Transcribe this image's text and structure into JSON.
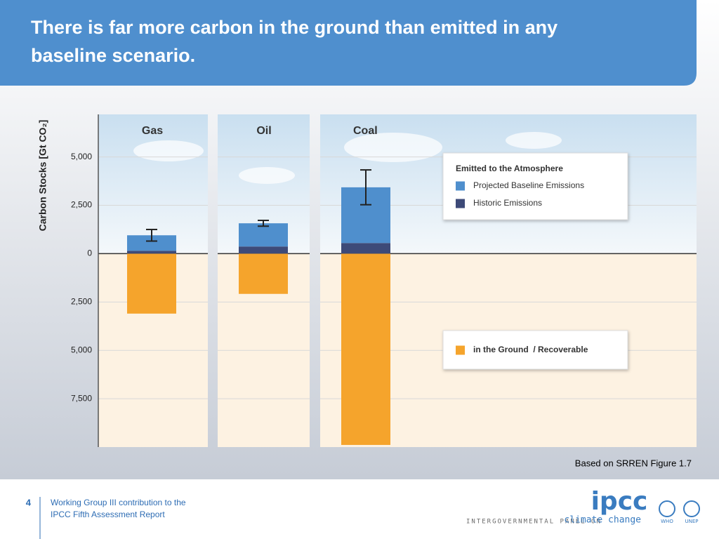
{
  "slide": {
    "title": "There is far more carbon in the ground than emitted in any baseline scenario.",
    "source": "Based on SRREN Figure 1.7",
    "page_number": "4",
    "footer_line1": "Working Group III contribution to the",
    "footer_line2": "IPCC Fifth Assessment Report",
    "logo": "ipcc",
    "logo_line": "INTERGOVERNMENTAL PANEL ON",
    "logo_accent": "climate change",
    "who": "WHO",
    "unep": "UNEP"
  },
  "chart_data": {
    "type": "bar",
    "y_label": "Carbon Stocks [Gt CO₂]",
    "categories": [
      "Gas",
      "Oil",
      "Coal"
    ],
    "legend_title": "Emitted to the Atmosphere",
    "series": [
      {
        "name": "Projected Baseline Emissions",
        "color": "#4f8fcd",
        "values": [
          800,
          1200,
          2880
        ],
        "errors": [
          300,
          150,
          900
        ]
      },
      {
        "name": "Historic Emissions",
        "color": "#3d4a78",
        "values": [
          150,
          370,
          550
        ]
      },
      {
        "name": "in the Ground  / Recoverable",
        "color": "#f5a42c",
        "values": [
          -3100,
          -2080,
          -9890
        ]
      }
    ],
    "ylim": [
      -10000,
      7200
    ],
    "yticks": [
      {
        "value": -7500,
        "label": "7,500"
      },
      {
        "value": -5000,
        "label": "5,000"
      },
      {
        "value": -2500,
        "label": "2,500"
      },
      0,
      {
        "value": 2500,
        "label": "2,500"
      },
      {
        "value": 5000,
        "label": "5,000"
      }
    ],
    "grid": true
  }
}
